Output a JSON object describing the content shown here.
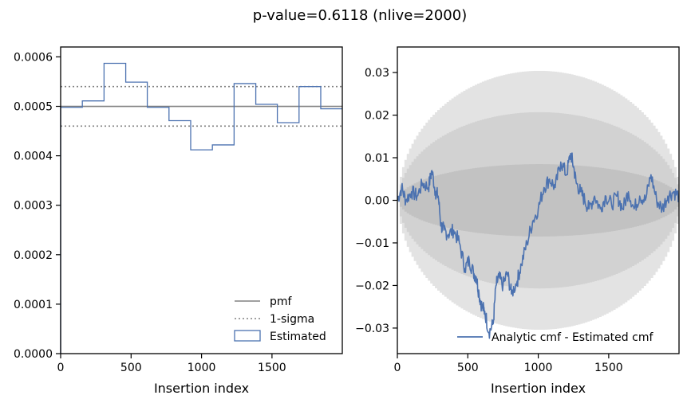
{
  "figure_title": "p-value=0.6118 (nlive=2000)",
  "colors": {
    "estimated": "#4c72b0",
    "pmf": "#808080",
    "sigma": "#808080",
    "band_outer": "#e3e3e3",
    "band_mid": "#d2d2d2",
    "band_inner": "#c2c2c2"
  },
  "chart_data": [
    {
      "type": "step",
      "title": "",
      "xlabel": "Insertion index",
      "ylabel": "",
      "xlim": [
        0,
        1999
      ],
      "ylim": [
        0,
        0.00062
      ],
      "xticks": [
        0,
        500,
        1000,
        1500
      ],
      "xtick_labels": [
        "0",
        "500",
        "1000",
        "1500"
      ],
      "yticks": [
        0,
        0.0001,
        0.0002,
        0.0003,
        0.0004,
        0.0005,
        0.0006
      ],
      "ytick_labels": [
        "0.0000",
        "0.0001",
        "0.0002",
        "0.0003",
        "0.0004",
        "0.0005",
        "0.0006"
      ],
      "pmf": 0.0005,
      "sigma_upper": 0.00054,
      "sigma_lower": 0.00046,
      "bin_edges": [
        0,
        154,
        308,
        462,
        615,
        769,
        923,
        1077,
        1231,
        1385,
        1538,
        1692,
        1846,
        2000
      ],
      "estimated": [
        0.000498,
        0.000511,
        0.000587,
        0.000549,
        0.000498,
        0.000471,
        0.000412,
        0.000422,
        0.000546,
        0.000504,
        0.000467,
        0.00054,
        0.000495
      ],
      "legend": {
        "placement": "lower-right",
        "entries": [
          "pmf",
          "1-sigma",
          "Estimated"
        ]
      }
    },
    {
      "type": "line",
      "title": "",
      "xlabel": "Insertion index",
      "ylabel": "",
      "xlim": [
        0,
        1999
      ],
      "ylim": [
        -0.036,
        0.036
      ],
      "xticks": [
        0,
        500,
        1000,
        1500
      ],
      "xtick_labels": [
        "0",
        "500",
        "1000",
        "1500"
      ],
      "yticks": [
        -0.03,
        -0.02,
        -0.01,
        0.0,
        0.01,
        0.02,
        0.03
      ],
      "ytick_labels": [
        "−0.03",
        "−0.02",
        "−0.01",
        "0.00",
        "0.01",
        "0.02",
        "0.03"
      ],
      "band_amplitudes": [
        0.0304,
        0.0207,
        0.0085
      ],
      "series": [
        {
          "name": "Analytic cmf - Estimated cmf",
          "x": [
            0,
            30,
            60,
            100,
            140,
            180,
            220,
            245,
            270,
            290,
            310,
            330,
            360,
            400,
            440,
            480,
            510,
            540,
            560,
            580,
            600,
            620,
            650,
            680,
            700,
            720,
            750,
            780,
            810,
            850,
            880,
            920,
            960,
            1000,
            1040,
            1080,
            1120,
            1160,
            1200,
            1230,
            1250,
            1270,
            1300,
            1330,
            1360,
            1400,
            1440,
            1480,
            1520,
            1560,
            1600,
            1640,
            1680,
            1720,
            1760,
            1800,
            1840,
            1880,
            1920,
            1960,
            1999
          ],
          "y": [
            0.0,
            0.003,
            0.0,
            0.002,
            0.001,
            0.004,
            0.003,
            0.007,
            0.002,
            0.001,
            -0.006,
            -0.007,
            -0.008,
            -0.007,
            -0.01,
            -0.016,
            -0.014,
            -0.017,
            -0.018,
            -0.022,
            -0.025,
            -0.026,
            -0.031,
            -0.029,
            -0.02,
            -0.018,
            -0.02,
            -0.017,
            -0.022,
            -0.019,
            -0.015,
            -0.01,
            -0.005,
            -0.002,
            0.003,
            0.005,
            0.003,
            0.009,
            0.006,
            0.011,
            0.008,
            0.004,
            0.002,
            0.0,
            -0.002,
            0.001,
            -0.002,
            0.001,
            -0.001,
            0.001,
            -0.002,
            0.002,
            -0.002,
            0.001,
            0.0,
            0.006,
            0.0,
            -0.002,
            0.001,
            0.002,
            0.001
          ]
        }
      ],
      "legend": {
        "placement": "lower-right",
        "entries": [
          "Analytic cmf - Estimated cmf"
        ]
      }
    }
  ]
}
